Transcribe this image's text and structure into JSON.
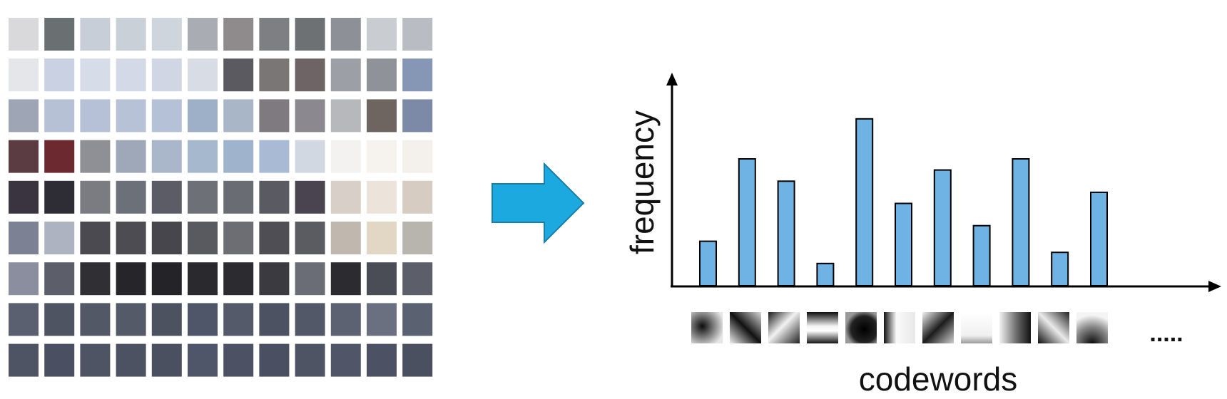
{
  "patch_grid": {
    "rows": 9,
    "cols": 12,
    "tiles": [
      [
        "#d9d9dc",
        "#6a6f72",
        "#c7ced8",
        "#c9d0d8",
        "#cfd5dc",
        "#a9acb2",
        "#8f8a8c",
        "#7d7f82",
        "#6e7174",
        "#8d9096",
        "#c9ccd1",
        "#b9bcc2"
      ],
      [
        "#e4e6ea",
        "#c9d1e2",
        "#d6dce8",
        "#d3d9e6",
        "#d0d6e4",
        "#d8dce4",
        "#5a5a60",
        "#7b7676",
        "#6e6466",
        "#9ca0a6",
        "#8f9399",
        "#8597b5"
      ],
      [
        "#9ea6b6",
        "#b7c1d6",
        "#b6c0d6",
        "#b8c2d6",
        "#b4c1d6",
        "#9eb0c8",
        "#a9b6c8",
        "#7f7a80",
        "#8c8890",
        "#b7b8bc",
        "#6e6460",
        "#7c8aa8"
      ],
      [
        "#5a3c42",
        "#6c2a30",
        "#8f9096",
        "#9fa8b8",
        "#aab6ca",
        "#a6b8ce",
        "#9fb4cc",
        "#a8bad4",
        "#d2d8e2",
        "#f4f2f0",
        "#f6f2ee",
        "#f4f0ec"
      ],
      [
        "#3a3440",
        "#2e2c34",
        "#7a7c82",
        "#6c7078",
        "#5c5c66",
        "#6e7078",
        "#6a6c74",
        "#5a5a62",
        "#4a4450",
        "#d8d0c8",
        "#ece4da",
        "#d6ccc2"
      ],
      [
        "#7c8294",
        "#aeb3c2",
        "#4a4a50",
        "#4c4c52",
        "#46464c",
        "#585a60",
        "#6c6e74",
        "#4e4e54",
        "#5a5c62",
        "#c0b8ae",
        "#e2d6c4",
        "#b8b4ae"
      ],
      [
        "#8a8e9e",
        "#5c5e6a",
        "#303034",
        "#26262a",
        "#242428",
        "#2a2a2e",
        "#2c2c30",
        "#3a3a40",
        "#6a6c76",
        "#2c2c30",
        "#4a4c56",
        "#5c5e6a"
      ],
      [
        "#5a6070",
        "#4e5462",
        "#525866",
        "#545a68",
        "#4c5260",
        "#50566a",
        "#545a6a",
        "#4c5262",
        "#525868",
        "#5c6272",
        "#6a7080",
        "#5a6272"
      ],
      [
        "#4e5464",
        "#4a5062",
        "#4e5464",
        "#4c5262",
        "#4a5060",
        "#50566a",
        "#4c5264",
        "#4a5062",
        "#4e5464",
        "#505668",
        "#4c5264",
        "#4a5060"
      ]
    ]
  },
  "arrow": {
    "color": "#1ca9df",
    "stroke": "#1a7fa8"
  },
  "chart_data": {
    "type": "bar",
    "categories": [
      "",
      "",
      "",
      "",
      "",
      "",
      "",
      "",
      "",
      "",
      ""
    ],
    "values": [
      20,
      57,
      47,
      10,
      75,
      37,
      52,
      27,
      57,
      15,
      42
    ],
    "ylim": [
      0,
      90
    ],
    "bar_color": "#6fb3e4",
    "grid": false,
    "ylabel": "frequency",
    "xlabel": "codewords",
    "ellipsis": "....."
  },
  "codeword_tiles": [
    "dark-spot",
    "diagonal-edge",
    "diagonal-edge-2",
    "horizontal-bar",
    "dark-blob",
    "vertical-edge",
    "diagonal-edge-3",
    "light-flat",
    "horizontal-gradient",
    "diagonal-edge-4",
    "corner-gradient"
  ]
}
